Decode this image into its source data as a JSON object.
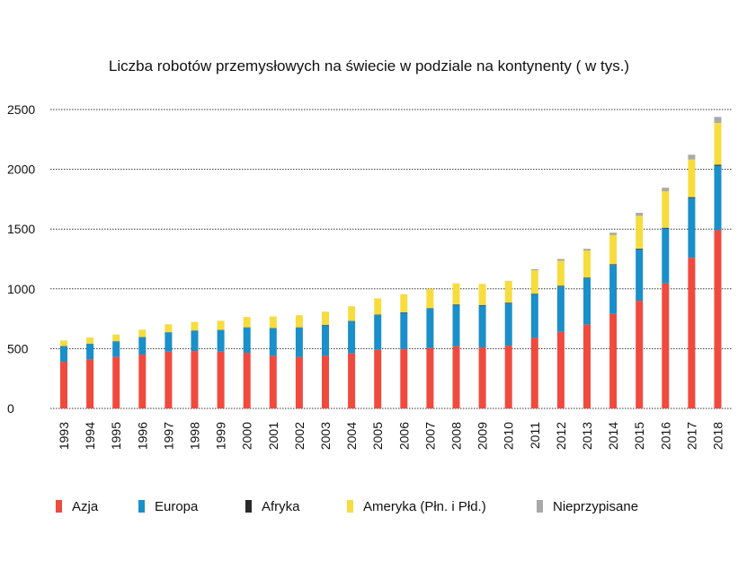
{
  "chart_data": {
    "type": "bar",
    "stacked": true,
    "title": "Liczba robotów przemysłowych na świecie w podziale na kontynenty ( w tys.)",
    "xlabel": "",
    "ylabel": "",
    "ylim": [
      0,
      2500
    ],
    "yticks": [
      0,
      500,
      1000,
      1500,
      2000,
      2500
    ],
    "grid": true,
    "legend_position": "bottom",
    "categories": [
      "1993",
      "1994",
      "1995",
      "1996",
      "1997",
      "1998",
      "1999",
      "2000",
      "2001",
      "2002",
      "2003",
      "2004",
      "2005",
      "2006",
      "2007",
      "2008",
      "2009",
      "2010",
      "2011",
      "2012",
      "2013",
      "2014",
      "2015",
      "2016",
      "2017",
      "2018"
    ],
    "series": [
      {
        "name": "Azja",
        "color": "#f04a3e",
        "values": [
          390,
          410,
          430,
          450,
          475,
          480,
          475,
          465,
          440,
          430,
          440,
          460,
          490,
          495,
          505,
          520,
          510,
          525,
          590,
          640,
          700,
          790,
          900,
          1045,
          1260,
          1490
        ]
      },
      {
        "name": "Europa",
        "color": "#1a8fc9",
        "values": [
          130,
          130,
          130,
          145,
          160,
          170,
          180,
          210,
          230,
          245,
          255,
          270,
          290,
          305,
          330,
          345,
          350,
          355,
          365,
          380,
          390,
          410,
          430,
          460,
          500,
          540
        ]
      },
      {
        "name": "Afryka",
        "color": "#2a2a2a",
        "values": [
          2,
          2,
          2,
          2,
          2,
          2,
          2,
          3,
          3,
          3,
          3,
          3,
          4,
          4,
          4,
          5,
          5,
          5,
          5,
          5,
          5,
          5,
          6,
          6,
          7,
          8
        ]
      },
      {
        "name": "Ameryka (Płn. i Płd.)",
        "color": "#f7dc3e",
        "values": [
          45,
          50,
          55,
          60,
          65,
          70,
          75,
          85,
          95,
          100,
          110,
          120,
          135,
          150,
          160,
          175,
          175,
          180,
          195,
          210,
          225,
          245,
          275,
          305,
          315,
          350
        ]
      },
      {
        "name": "Nieprzypisane",
        "color": "#a9a9a9",
        "values": [
          1,
          1,
          1,
          1,
          1,
          1,
          1,
          1,
          1,
          1,
          1,
          1,
          1,
          1,
          1,
          1,
          1,
          2,
          10,
          15,
          15,
          20,
          25,
          30,
          40,
          50
        ]
      }
    ]
  }
}
